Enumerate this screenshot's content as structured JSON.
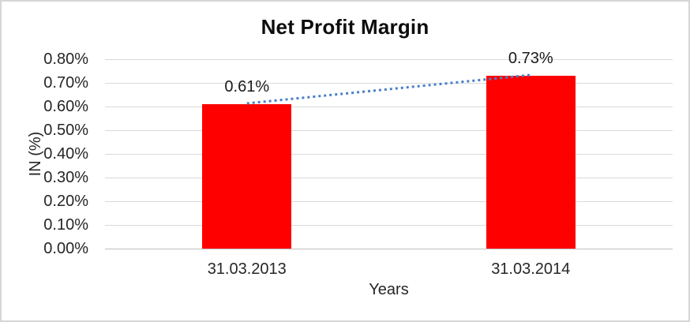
{
  "chart_data": {
    "type": "bar",
    "title": "Net Profit Margin",
    "categories": [
      "31.03.2013",
      "31.03.2014"
    ],
    "values": [
      0.61,
      0.73
    ],
    "value_labels": [
      "0.61%",
      "0.73%"
    ],
    "xlabel": "Years",
    "ylabel": "IN (%)",
    "ylim": [
      0,
      0.8
    ],
    "ytick_step": 0.1,
    "ytick_labels": [
      "0.00%",
      "0.10%",
      "0.20%",
      "0.30%",
      "0.40%",
      "0.50%",
      "0.60%",
      "0.70%",
      "0.80%"
    ],
    "grid": true,
    "legend": "none",
    "bar_color": "#ff0000",
    "gridline_color": "#d9d9d9",
    "axis_line_color": "#bfbfbf",
    "trendline": {
      "type": "linear",
      "style": "dotted",
      "color": "#4a80c4"
    }
  }
}
